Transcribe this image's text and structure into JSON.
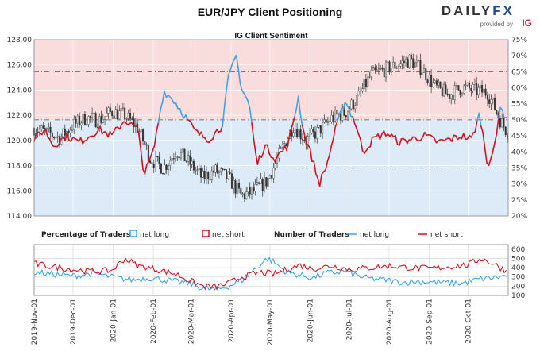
{
  "header": {
    "title": "EUR/JPY Client Positioning"
  },
  "logo": {
    "brand_a": "DAILY",
    "brand_b": "FX",
    "provided": "provided by",
    "ig": "IG"
  },
  "colors": {
    "net_long": "#3ba3e8",
    "net_short": "#d0141e",
    "bg_upper": "#f9dcdc",
    "bg_lower": "#dcebf7",
    "candle": "#333333"
  },
  "chart_data": [
    {
      "type": "line",
      "title": "IG Client Sentiment",
      "y_left_ticks": [
        "128.00",
        "126.00",
        "124.00",
        "122.00",
        "120.00",
        "118.00",
        "116.00",
        "114.00"
      ],
      "y_left_range": [
        114,
        128
      ],
      "y_right_ticks": [
        "75%",
        "70%",
        "65%",
        "60%",
        "55%",
        "50%",
        "45%",
        "40%",
        "35%",
        "30%",
        "25%",
        "20%"
      ],
      "y_right_range": [
        20,
        75
      ],
      "price_trend": [
        [
          0,
          121.0
        ],
        [
          10,
          120.6
        ],
        [
          20,
          120.2
        ],
        [
          30,
          121.2
        ],
        [
          40,
          121.8
        ],
        [
          50,
          121.6
        ],
        [
          60,
          122.3
        ],
        [
          70,
          122.0
        ],
        [
          80,
          121.0
        ],
        [
          90,
          118.5
        ],
        [
          100,
          117.8
        ],
        [
          110,
          119.2
        ],
        [
          120,
          118.2
        ],
        [
          130,
          117.0
        ],
        [
          140,
          117.6
        ],
        [
          150,
          117.0
        ],
        [
          160,
          115.6
        ],
        [
          170,
          116.0
        ],
        [
          180,
          116.8
        ],
        [
          190,
          119.0
        ],
        [
          200,
          121.2
        ],
        [
          210,
          120.0
        ],
        [
          220,
          120.8
        ],
        [
          230,
          121.8
        ],
        [
          240,
          122.2
        ],
        [
          250,
          123.4
        ],
        [
          260,
          125.2
        ],
        [
          270,
          125.6
        ],
        [
          280,
          126.0
        ],
        [
          290,
          126.4
        ],
        [
          300,
          125.6
        ],
        [
          310,
          124.2
        ],
        [
          320,
          123.6
        ],
        [
          330,
          124.2
        ],
        [
          340,
          124.0
        ],
        [
          350,
          123.8
        ],
        [
          360,
          121.6
        ],
        [
          365,
          120.7
        ]
      ],
      "sentiment_pct": [
        [
          0,
          44
        ],
        [
          8,
          47
        ],
        [
          15,
          42
        ],
        [
          25,
          45
        ],
        [
          35,
          43
        ],
        [
          50,
          47
        ],
        [
          60,
          45
        ],
        [
          70,
          50
        ],
        [
          80,
          47
        ],
        [
          85,
          33
        ],
        [
          92,
          40
        ],
        [
          100,
          59
        ],
        [
          108,
          56
        ],
        [
          115,
          52
        ],
        [
          125,
          46
        ],
        [
          135,
          44
        ],
        [
          145,
          48
        ],
        [
          150,
          63
        ],
        [
          156,
          70
        ],
        [
          160,
          60
        ],
        [
          166,
          55
        ],
        [
          172,
          36
        ],
        [
          178,
          42
        ],
        [
          186,
          38
        ],
        [
          196,
          42
        ],
        [
          204,
          57
        ],
        [
          208,
          46
        ],
        [
          214,
          39
        ],
        [
          220,
          30
        ],
        [
          226,
          36
        ],
        [
          232,
          46
        ],
        [
          240,
          56
        ],
        [
          248,
          49
        ],
        [
          254,
          40
        ],
        [
          262,
          44
        ],
        [
          272,
          46
        ],
        [
          282,
          43
        ],
        [
          292,
          44
        ],
        [
          302,
          45
        ],
        [
          312,
          43
        ],
        [
          322,
          44
        ],
        [
          330,
          45
        ],
        [
          338,
          44
        ],
        [
          344,
          52
        ],
        [
          350,
          36
        ],
        [
          356,
          42
        ],
        [
          360,
          55
        ],
        [
          365,
          49
        ]
      ],
      "series": [
        {
          "name": "net long",
          "role": "above 50%"
        },
        {
          "name": "net short",
          "role": "below 50%"
        }
      ]
    },
    {
      "type": "line",
      "x_tick_labels": [
        "2019-Nov-01",
        "2019-Dec-01",
        "2020-Jan-01",
        "2020-Feb-01",
        "2020-Mar-01",
        "2020-Apr-01",
        "2020-May-01",
        "2020-Jun-01",
        "2020-Jul-01",
        "2020-Aug-01",
        "2020-Sep-01",
        "2020-Oct-01"
      ],
      "x_tick_days": [
        0,
        30,
        61,
        92,
        121,
        152,
        182,
        213,
        243,
        274,
        305,
        335
      ],
      "y_right_ticks": [
        "600",
        "500",
        "400",
        "300",
        "200",
        "100"
      ],
      "y_range": [
        100,
        650
      ],
      "legend": {
        "pct_label": "Percentage of Traders",
        "pct_long": "net long",
        "pct_short": "net short",
        "num_label": "Number of Traders",
        "num_long": "net long",
        "num_short": "net short"
      },
      "series": [
        {
          "name": "net long",
          "values_trend": [
            [
              0,
              350
            ],
            [
              15,
              330
            ],
            [
              30,
              310
            ],
            [
              45,
              340
            ],
            [
              60,
              300
            ],
            [
              75,
              270
            ],
            [
              90,
              290
            ],
            [
              105,
              260
            ],
            [
              120,
              230
            ],
            [
              130,
              180
            ],
            [
              140,
              160
            ],
            [
              150,
              200
            ],
            [
              160,
              260
            ],
            [
              170,
              380
            ],
            [
              180,
              500
            ],
            [
              185,
              460
            ],
            [
              195,
              350
            ],
            [
              205,
              320
            ],
            [
              215,
              290
            ],
            [
              225,
              340
            ],
            [
              240,
              360
            ],
            [
              255,
              290
            ],
            [
              270,
              270
            ],
            [
              285,
              240
            ],
            [
              300,
              250
            ],
            [
              315,
              240
            ],
            [
              330,
              230
            ],
            [
              345,
              280
            ],
            [
              360,
              300
            ],
            [
              365,
              320
            ]
          ]
        },
        {
          "name": "net short",
          "values_trend": [
            [
              0,
              440
            ],
            [
              15,
              410
            ],
            [
              30,
              380
            ],
            [
              45,
              360
            ],
            [
              60,
              370
            ],
            [
              70,
              500
            ],
            [
              80,
              420
            ],
            [
              95,
              380
            ],
            [
              110,
              330
            ],
            [
              120,
              260
            ],
            [
              130,
              200
            ],
            [
              140,
              190
            ],
            [
              150,
              230
            ],
            [
              160,
              300
            ],
            [
              175,
              350
            ],
            [
              185,
              330
            ],
            [
              195,
              380
            ],
            [
              205,
              430
            ],
            [
              215,
              390
            ],
            [
              230,
              420
            ],
            [
              245,
              380
            ],
            [
              260,
              400
            ],
            [
              275,
              420
            ],
            [
              290,
              400
            ],
            [
              305,
              390
            ],
            [
              320,
              410
            ],
            [
              335,
              430
            ],
            [
              345,
              500
            ],
            [
              355,
              440
            ],
            [
              365,
              360
            ]
          ]
        }
      ]
    }
  ]
}
